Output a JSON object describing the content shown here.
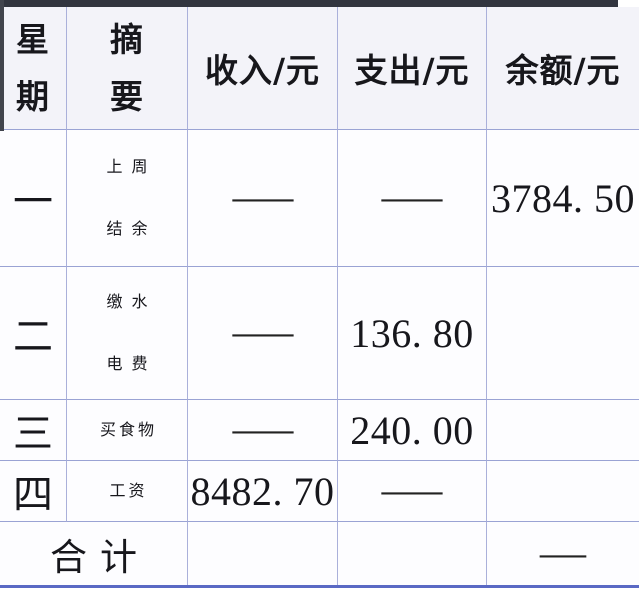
{
  "table": {
    "header": {
      "day_lines": [
        "星",
        "期"
      ],
      "summary_lines": [
        "摘",
        "要"
      ],
      "col_income": "收入/元",
      "col_expense": "支出/元",
      "col_balance": "余额/元"
    },
    "rows": [
      {
        "day": "一",
        "summary_lines": [
          "上周",
          "结余"
        ],
        "income": "—",
        "expense": "—",
        "balance": "3784.50"
      },
      {
        "day": "二",
        "summary_lines": [
          "缴水",
          "电费"
        ],
        "income": "—",
        "expense": "136.80",
        "balance": ""
      },
      {
        "day": "三",
        "summary_lines": [
          "买食物"
        ],
        "income": "—",
        "expense": "240.00",
        "balance": ""
      },
      {
        "day": "四",
        "summary_lines": [
          "工资"
        ],
        "income": "8482.70",
        "expense": "—",
        "balance": ""
      }
    ],
    "footer": {
      "label": "合计",
      "income": "",
      "expense": "",
      "balance": "—"
    }
  },
  "colors": {
    "grid_line": "#9aa3d4",
    "top_border": "#32353f",
    "bottom_border": "#5a69c4",
    "header_bg": "#f3f3f9",
    "text": "#17171c"
  }
}
